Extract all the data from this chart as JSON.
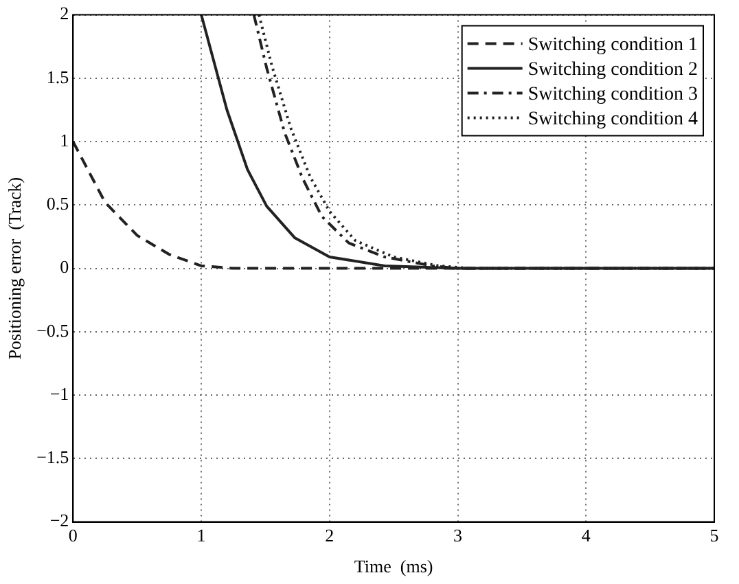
{
  "chart_data": {
    "type": "line",
    "xlabel": "Time  (ms)",
    "ylabel": "Positioning error  (Track)",
    "xlim": [
      0,
      5
    ],
    "ylim": [
      -2,
      2
    ],
    "xticks": [
      0,
      1,
      2,
      3,
      4,
      5
    ],
    "yticks": [
      -2,
      -1.5,
      -1,
      -0.5,
      0,
      0.5,
      1,
      1.5,
      2
    ],
    "grid": true,
    "legend": "top right",
    "marker": "none",
    "series": [
      {
        "name": "Switching condition 1",
        "color": "#222222",
        "line_style": "dashed",
        "x": [
          0,
          0.25,
          0.5,
          0.75,
          1,
          1.25,
          2,
          3,
          4,
          5
        ],
        "values": [
          1,
          0.52,
          0.26,
          0.11,
          0.02,
          0,
          0,
          0,
          0,
          0
        ]
      },
      {
        "name": "Switching condition 2",
        "color": "#222222",
        "line_style": "solid",
        "x": [
          1,
          1.2,
          1.36,
          1.51,
          1.73,
          2,
          2.43,
          3,
          4,
          5
        ],
        "values": [
          2,
          1.25,
          0.78,
          0.49,
          0.24,
          0.09,
          0.02,
          0,
          0,
          0
        ]
      },
      {
        "name": "Switching condition 3",
        "color": "#222222",
        "line_style": "dashdot",
        "x": [
          1.41,
          1.51,
          1.65,
          1.79,
          1.94,
          2.15,
          2.43,
          2.8,
          3,
          4,
          5
        ],
        "values": [
          2,
          1.58,
          1.07,
          0.71,
          0.41,
          0.2,
          0.09,
          0.02,
          0,
          0,
          0
        ]
      },
      {
        "name": "Switching condition 4",
        "color": "#222222",
        "line_style": "dotted",
        "x": [
          1.45,
          1.55,
          1.7,
          1.85,
          2,
          2.2,
          2.5,
          2.85,
          3.1,
          4,
          5
        ],
        "values": [
          2,
          1.6,
          1.1,
          0.72,
          0.45,
          0.22,
          0.09,
          0.02,
          0,
          0,
          0
        ]
      }
    ]
  }
}
